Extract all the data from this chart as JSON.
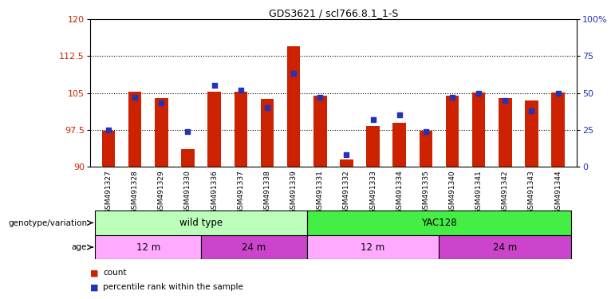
{
  "title": "GDS3621 / scl766.8.1_1-S",
  "samples": [
    "GSM491327",
    "GSM491328",
    "GSM491329",
    "GSM491330",
    "GSM491336",
    "GSM491337",
    "GSM491338",
    "GSM491339",
    "GSM491331",
    "GSM491332",
    "GSM491333",
    "GSM491334",
    "GSM491335",
    "GSM491340",
    "GSM491341",
    "GSM491342",
    "GSM491343",
    "GSM491344"
  ],
  "counts": [
    97.3,
    105.3,
    104.0,
    93.5,
    105.2,
    105.2,
    103.8,
    114.5,
    104.5,
    91.5,
    98.2,
    99.0,
    97.3,
    104.5,
    105.1,
    104.0,
    103.5,
    105.1
  ],
  "percentiles": [
    25,
    47,
    43,
    24,
    55,
    52,
    40,
    63,
    47,
    8,
    32,
    35,
    24,
    47,
    50,
    45,
    38,
    50
  ],
  "ymin": 90,
  "ymax": 120,
  "yticks_left": [
    90,
    97.5,
    105,
    112.5,
    120
  ],
  "yticks_right": [
    0,
    25,
    50,
    75,
    100
  ],
  "bar_color": "#cc2200",
  "dot_color": "#2233bb",
  "genotype_groups": [
    {
      "label": "wild type",
      "start": 0,
      "end": 8,
      "color": "#bbffbb"
    },
    {
      "label": "YAC128",
      "start": 8,
      "end": 18,
      "color": "#44ee44"
    }
  ],
  "age_groups": [
    {
      "label": "12 m",
      "start": 0,
      "end": 4,
      "color": "#ffaaff"
    },
    {
      "label": "24 m",
      "start": 4,
      "end": 8,
      "color": "#cc44cc"
    },
    {
      "label": "12 m",
      "start": 8,
      "end": 13,
      "color": "#ffaaff"
    },
    {
      "label": "24 m",
      "start": 13,
      "end": 18,
      "color": "#cc44cc"
    }
  ],
  "genotype_label": "genotype/variation",
  "age_label": "age",
  "legend_count": "count",
  "legend_percentile": "percentile rank within the sample",
  "xtick_bg": "#cccccc"
}
